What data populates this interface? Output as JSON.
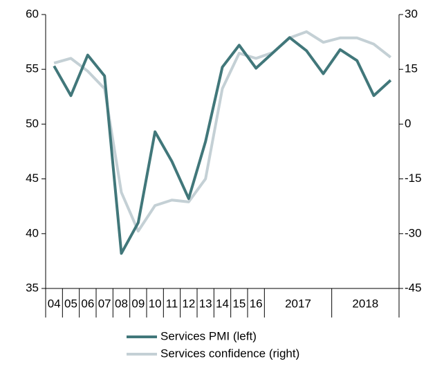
{
  "chart_data": {
    "type": "line",
    "categories": [
      "04",
      "05",
      "06",
      "07",
      "08",
      "09",
      "10",
      "11",
      "12",
      "13",
      "14",
      "15",
      "16",
      "2017",
      null,
      null,
      null,
      "2018",
      null,
      null,
      null
    ],
    "series": [
      {
        "name": "Services PMI (left)",
        "color": "#41777a",
        "axis": "y",
        "values": [
          55.3,
          52.6,
          56.3,
          54.4,
          38.2,
          41.0,
          49.3,
          46.6,
          43.2,
          48.4,
          55.2,
          57.2,
          55.1,
          56.5,
          57.9,
          56.7,
          54.6,
          56.8,
          55.8,
          52.6,
          54.0
        ]
      },
      {
        "name": "Services confidence (right)",
        "color": "#c4d0d5",
        "axis": "y2",
        "values": [
          16.7,
          18.0,
          14.5,
          9.7,
          -18.7,
          -29.3,
          -22.3,
          -20.8,
          -21.3,
          -15.0,
          9.7,
          19.4,
          18.0,
          19.6,
          23.6,
          25.3,
          22.4,
          23.6,
          23.6,
          21.9,
          18.3
        ]
      }
    ],
    "ylim": [
      35,
      60
    ],
    "yticks": [
      35,
      40,
      45,
      50,
      55,
      60
    ],
    "y2lim": [
      -45,
      30
    ],
    "y2ticks": [
      -45,
      -30,
      -15,
      0,
      15,
      30
    ],
    "grid": false
  }
}
